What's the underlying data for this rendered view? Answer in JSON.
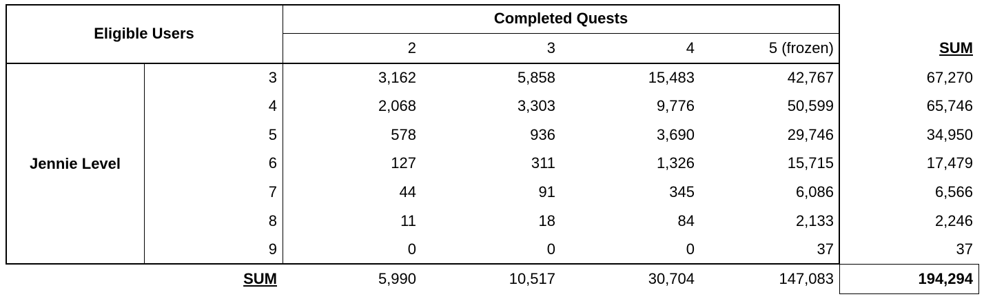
{
  "header": {
    "row_label": "Eligible Users",
    "column_group": "Completed Quests",
    "columns": [
      "2",
      "3",
      "4",
      "5 (frozen)"
    ],
    "sum_label": "SUM"
  },
  "row_group": "Jennie Level",
  "rows": [
    {
      "level": "3",
      "values": [
        "3,162",
        "5,858",
        "15,483",
        "42,767"
      ],
      "sum": "67,270"
    },
    {
      "level": "4",
      "values": [
        "2,068",
        "3,303",
        "9,776",
        "50,599"
      ],
      "sum": "65,746"
    },
    {
      "level": "5",
      "values": [
        "578",
        "936",
        "3,690",
        "29,746"
      ],
      "sum": "34,950"
    },
    {
      "level": "6",
      "values": [
        "127",
        "311",
        "1,326",
        "15,715"
      ],
      "sum": "17,479"
    },
    {
      "level": "7",
      "values": [
        "44",
        "91",
        "345",
        "6,086"
      ],
      "sum": "6,566"
    },
    {
      "level": "8",
      "values": [
        "11",
        "18",
        "84",
        "2,133"
      ],
      "sum": "2,246"
    },
    {
      "level": "9",
      "values": [
        "0",
        "0",
        "0",
        "37"
      ],
      "sum": "37"
    }
  ],
  "totals": {
    "label": "SUM",
    "values": [
      "5,990",
      "10,517",
      "30,704",
      "147,083"
    ],
    "grand_total": "194,294"
  }
}
